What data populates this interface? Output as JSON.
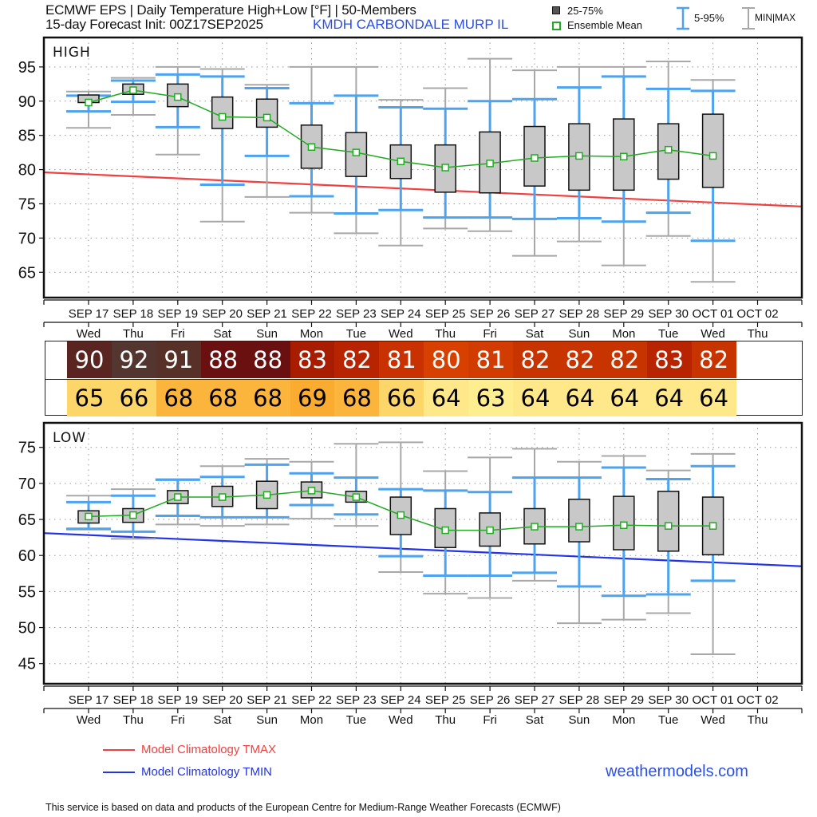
{
  "header": {
    "title_line1": "ECMWF EPS | Daily Temperature High+Low [°F] | 50-Members",
    "title_line2": "15-day Forecast Init: 00Z17SEP2025",
    "station": "KMDH  CARBONDALE MURP IL"
  },
  "legend": {
    "box_label": "25-75%",
    "mean_label": "Ensemble Mean",
    "whisker_label": "5-95%",
    "minmax_label": "MIN|MAX"
  },
  "bottom_legend": {
    "tmax_label": "Model Climatology TMAX",
    "tmin_label": "Model Climatology TMIN",
    "brand": "weathermodels.com",
    "disclaimer": "This service is based on data and products of the European Centre for Medium-Range Weather Forecasts (ECMWF)"
  },
  "colors": {
    "box_fill": "#c8c8c8",
    "whisker_595": "#4da3f0",
    "minmax": "#a8a8a8",
    "mean": "#22aa22",
    "tmax_climo": "#f04040",
    "tmin_climo": "#2233e8",
    "station_text": "#2a4fe8"
  },
  "chart_data": [
    {
      "type": "box",
      "title": "HIGH",
      "ylabel": "°F",
      "ylim": [
        61.3,
        99.3
      ],
      "yticks": [
        65,
        70,
        75,
        80,
        85,
        90,
        95
      ],
      "grid": true,
      "categories": [
        "SEP 17",
        "SEP 18",
        "SEP 19",
        "SEP 20",
        "SEP 21",
        "SEP 22",
        "SEP 23",
        "SEP 24",
        "SEP 25",
        "SEP 26",
        "SEP 27",
        "SEP 28",
        "SEP 29",
        "SEP 30",
        "OCT 01",
        "OCT 02"
      ],
      "weekdays": [
        "Wed",
        "Thu",
        "Fri",
        "Sat",
        "Sun",
        "Mon",
        "Tue",
        "Wed",
        "Thu",
        "Fri",
        "Sat",
        "Sun",
        "Mon",
        "Tue",
        "Wed",
        "Thu"
      ],
      "series": {
        "min": [
          86.1,
          88.0,
          82.2,
          72.4,
          76.0,
          73.7,
          70.7,
          68.9,
          71.4,
          71.0,
          67.4,
          69.5,
          66.0,
          70.3,
          63.6
        ],
        "p5": [
          88.5,
          89.9,
          86.2,
          77.8,
          82.0,
          76.1,
          73.6,
          74.1,
          73.0,
          73.0,
          72.8,
          72.9,
          72.4,
          73.7,
          69.6
        ],
        "p25": [
          89.8,
          91.0,
          89.2,
          86.0,
          86.2,
          80.2,
          79.0,
          78.7,
          76.7,
          76.6,
          77.6,
          77.0,
          77.0,
          78.6,
          77.4
        ],
        "mean": [
          89.8,
          91.6,
          90.6,
          87.7,
          87.6,
          83.3,
          82.5,
          81.2,
          80.3,
          80.9,
          81.7,
          82.0,
          81.9,
          82.9,
          82.0
        ],
        "p75": [
          90.9,
          92.5,
          92.5,
          90.6,
          90.3,
          86.5,
          85.4,
          83.6,
          83.6,
          85.5,
          86.3,
          86.7,
          87.4,
          86.7,
          88.1
        ],
        "p95": [
          90.8,
          93.0,
          93.9,
          93.6,
          91.9,
          89.7,
          90.8,
          89.1,
          88.9,
          90.0,
          90.3,
          92.0,
          93.6,
          91.8,
          91.5
        ],
        "max": [
          91.4,
          93.4,
          95.0,
          94.7,
          92.4,
          95.0,
          95.0,
          90.2,
          91.9,
          96.2,
          94.5,
          95.0,
          95.0,
          95.8,
          93.1
        ]
      },
      "climatology": {
        "name": "Model Climatology TMAX",
        "start": 79.6,
        "end": 74.6
      }
    },
    {
      "type": "box",
      "title": "LOW",
      "ylabel": "°F",
      "ylim": [
        42.2,
        78.4
      ],
      "yticks": [
        45,
        50,
        55,
        60,
        65,
        70,
        75
      ],
      "grid": true,
      "categories": [
        "SEP 17",
        "SEP 18",
        "SEP 19",
        "SEP 20",
        "SEP 21",
        "SEP 22",
        "SEP 23",
        "SEP 24",
        "SEP 25",
        "SEP 26",
        "SEP 27",
        "SEP 28",
        "SEP 29",
        "SEP 30",
        "OCT 01",
        "OCT 02"
      ],
      "weekdays": [
        "Wed",
        "Thu",
        "Fri",
        "Sat",
        "Sun",
        "Mon",
        "Tue",
        "Wed",
        "Thu",
        "Fri",
        "Sat",
        "Sun",
        "Mon",
        "Tue",
        "Wed",
        "Thu"
      ],
      "series": {
        "min": [
          63.6,
          62.3,
          64.3,
          64.1,
          64.3,
          65.1,
          64.1,
          57.7,
          54.7,
          54.1,
          56.5,
          50.6,
          51.1,
          52.0,
          46.3
        ],
        "p5": [
          63.7,
          63.3,
          65.5,
          65.3,
          65.3,
          67.0,
          65.7,
          59.9,
          57.2,
          57.2,
          57.6,
          55.7,
          54.4,
          54.6,
          56.5
        ],
        "p25": [
          64.5,
          64.6,
          67.2,
          66.8,
          66.5,
          68.0,
          67.4,
          62.9,
          61.1,
          61.3,
          61.6,
          61.9,
          60.8,
          60.6,
          60.1
        ],
        "mean": [
          65.4,
          65.6,
          68.1,
          68.1,
          68.4,
          69.0,
          68.1,
          65.6,
          63.5,
          63.5,
          64.0,
          64.0,
          64.2,
          64.1,
          64.1
        ],
        "p75": [
          66.2,
          66.5,
          69.0,
          69.6,
          70.3,
          70.2,
          68.9,
          68.1,
          66.5,
          65.9,
          66.5,
          67.8,
          68.2,
          68.9,
          68.1
        ],
        "p95": [
          67.4,
          68.3,
          70.5,
          70.9,
          72.6,
          71.4,
          70.8,
          69.2,
          69.0,
          68.8,
          70.8,
          70.8,
          72.2,
          70.6,
          72.4
        ],
        "max": [
          68.3,
          69.2,
          70.6,
          72.4,
          73.4,
          73.0,
          75.5,
          75.7,
          71.7,
          73.6,
          74.8,
          73.0,
          73.8,
          71.8,
          74.1
        ]
      },
      "climatology": {
        "name": "Model Climatology TMIN",
        "start": 63.1,
        "end": 58.5
      }
    }
  ],
  "table": {
    "high": [
      90,
      92,
      91,
      88,
      88,
      83,
      82,
      81,
      80,
      81,
      82,
      82,
      82,
      83,
      82
    ],
    "low": [
      65,
      66,
      68,
      68,
      68,
      69,
      68,
      66,
      64,
      63,
      64,
      64,
      64,
      64,
      64
    ],
    "high_colors": [
      "#5a2420",
      "#533630",
      "#573128",
      "#6b1010",
      "#6b1010",
      "#a81c00",
      "#b82400",
      "#c93200",
      "#d84000",
      "#d33c00",
      "#c83400",
      "#c83400",
      "#c83400",
      "#b82400",
      "#c83400"
    ],
    "low_colors": [
      "#fdd66a",
      "#fdd66a",
      "#fbb43c",
      "#fbb43c",
      "#fbb43c",
      "#f9ac30",
      "#fbb43c",
      "#fdd66a",
      "#ffe88a",
      "#ffee90",
      "#ffe88a",
      "#ffe88a",
      "#ffe88a",
      "#ffe88a",
      "#ffe88a"
    ]
  }
}
